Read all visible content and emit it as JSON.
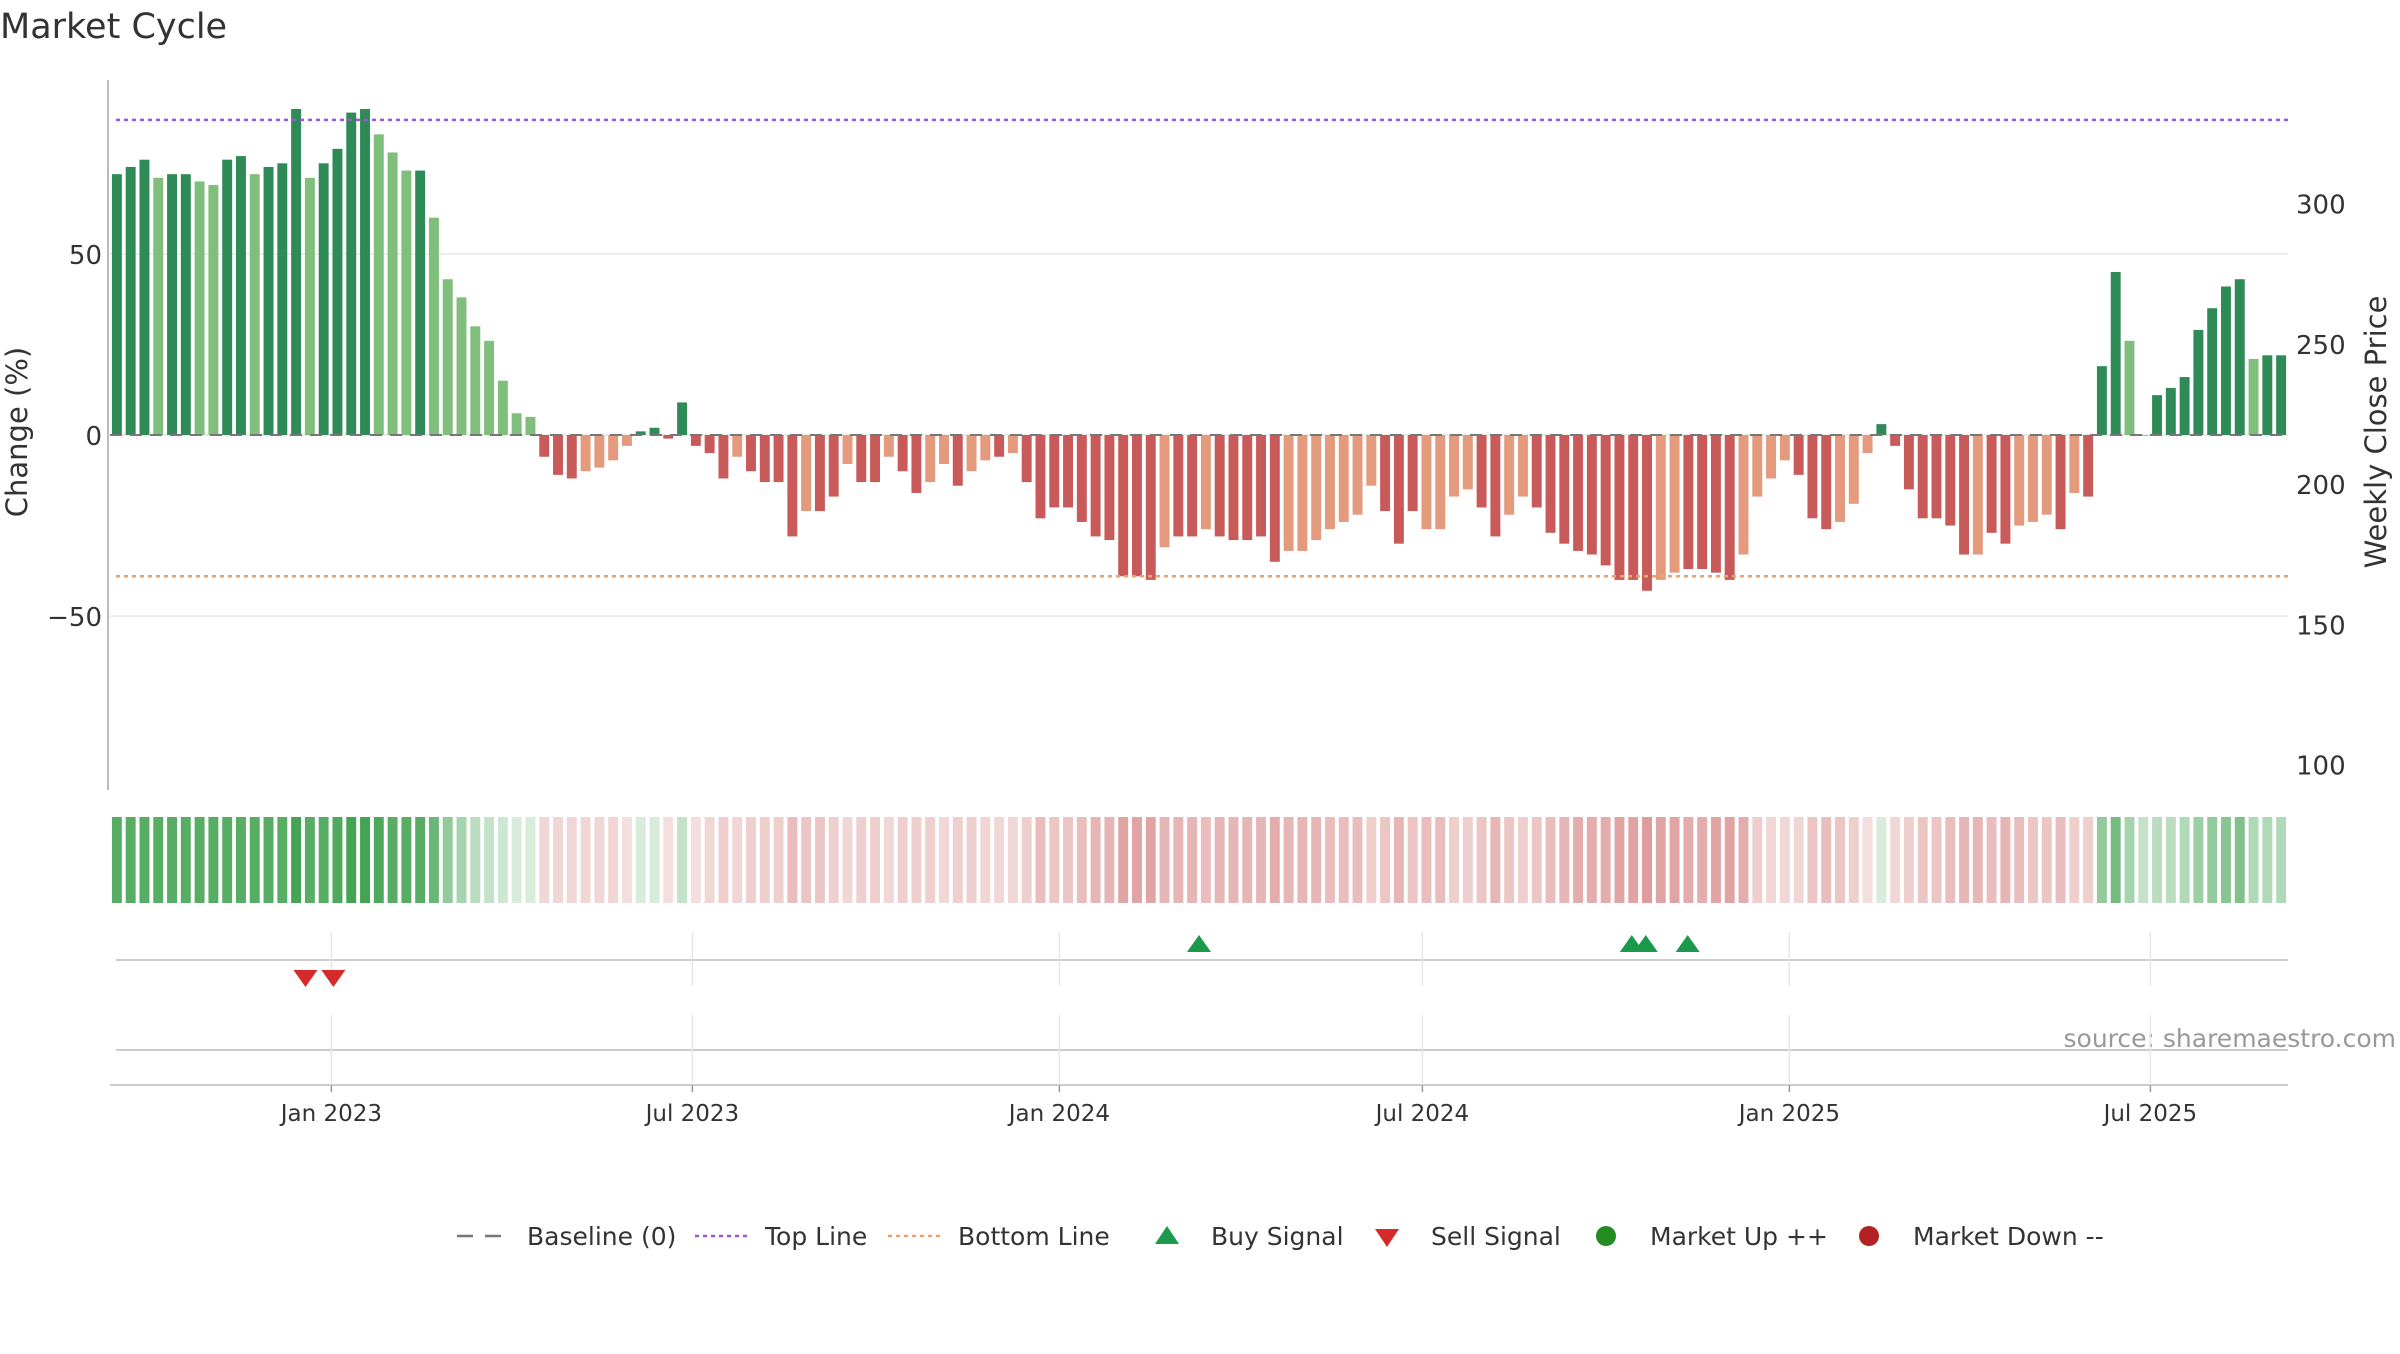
{
  "title": "Market Cycle",
  "source": "source: sharemaestro.com",
  "colors": {
    "strong_up": "#2e8b57",
    "light_up": "#7fbf7b",
    "strong_down": "#c85a5a",
    "light_down": "#e39a7d",
    "top_line": "#9b59d0",
    "bottom_line": "#e8a46a",
    "baseline": "#777777",
    "buy": "#1a9a4a",
    "sell": "#d62a2a",
    "market_up": "#228b22",
    "market_down": "#b22222",
    "grid": "#e6e6e6",
    "axis_text": "#333333",
    "source_text": "#999999"
  },
  "chart_data": {
    "type": "bar",
    "title": "Market Cycle",
    "ylabel": "Change (%)",
    "y2label": "Weekly Close Price",
    "ylim": [
      -98,
      98
    ],
    "yticks": [
      -50,
      0,
      50
    ],
    "ytick_labels": [
      "−50",
      "0",
      "50"
    ],
    "y2lim": [
      91,
      344
    ],
    "y2ticks": [
      100,
      150,
      200,
      250,
      300
    ],
    "baseline": 0,
    "top_line": 87,
    "bottom_line": -39,
    "x_start": "2022-09-12",
    "x_end": "2025-09-08",
    "xticks": [
      "2023-01-01",
      "2023-07-01",
      "2024-01-01",
      "2024-07-01",
      "2025-01-01",
      "2025-07-01"
    ],
    "xtick_labels": [
      "Jan 2023",
      "Jul 2023",
      "Jan 2024",
      "Jul 2024",
      "Jan 2025",
      "Jul 2025"
    ],
    "values": [
      72,
      74,
      76,
      71,
      72,
      72,
      70,
      69,
      76,
      77,
      72,
      74,
      75,
      90,
      71,
      75,
      79,
      89,
      90,
      83,
      78,
      73,
      73,
      60,
      43,
      38,
      30,
      26,
      15,
      6,
      5,
      -6,
      -11,
      -12,
      -10,
      -9,
      -7,
      -3,
      1,
      2,
      -1,
      9,
      -3,
      -5,
      -12,
      -6,
      -10,
      -13,
      -13,
      -28,
      -21,
      -21,
      -17,
      -8,
      -13,
      -13,
      -6,
      -10,
      -16,
      -13,
      -8,
      -14,
      -10,
      -7,
      -6,
      -5,
      -13,
      -23,
      -20,
      -20,
      -24,
      -28,
      -29,
      -39,
      -39,
      -40,
      -31,
      -28,
      -28,
      -26,
      -28,
      -29,
      -29,
      -28,
      -35,
      -32,
      -32,
      -29,
      -26,
      -24,
      -22,
      -14,
      -21,
      -30,
      -21,
      -26,
      -26,
      -17,
      -15,
      -20,
      -28,
      -22,
      -17,
      -20,
      -27,
      -30,
      -32,
      -33,
      -36,
      -40,
      -40,
      -43,
      -40,
      -38,
      -37,
      -37,
      -38,
      -40,
      -33,
      -17,
      -12,
      -7,
      -11,
      -23,
      -26,
      -24,
      -19,
      -5,
      3,
      -3,
      -15,
      -23,
      -23,
      -25,
      -33,
      -33,
      -27,
      -30,
      -25,
      -24,
      -22,
      -26,
      -16,
      -17,
      19,
      45,
      26,
      0,
      11,
      13,
      16,
      29,
      35,
      41,
      43,
      21,
      22,
      22
    ],
    "strong_flags": [
      1,
      1,
      1,
      0,
      1,
      1,
      0,
      0,
      1,
      1,
      0,
      1,
      1,
      1,
      0,
      1,
      1,
      1,
      1,
      0,
      0,
      0,
      1,
      0,
      0,
      0,
      0,
      0,
      0,
      0,
      0,
      1,
      1,
      1,
      0,
      0,
      0,
      0,
      1,
      1,
      1,
      1,
      1,
      1,
      1,
      0,
      1,
      1,
      1,
      1,
      0,
      1,
      1,
      0,
      1,
      1,
      0,
      1,
      1,
      0,
      0,
      1,
      0,
      0,
      1,
      0,
      1,
      1,
      1,
      1,
      1,
      1,
      1,
      1,
      1,
      1,
      0,
      1,
      1,
      0,
      1,
      1,
      1,
      1,
      1,
      0,
      0,
      0,
      0,
      0,
      0,
      0,
      1,
      1,
      1,
      0,
      0,
      0,
      0,
      1,
      1,
      0,
      0,
      1,
      1,
      1,
      1,
      1,
      1,
      1,
      1,
      1,
      0,
      0,
      1,
      1,
      1,
      1,
      0,
      0,
      0,
      0,
      1,
      1,
      1,
      0,
      0,
      0,
      1,
      1,
      1,
      1,
      1,
      1,
      1,
      0,
      1,
      1,
      0,
      0,
      0,
      1,
      0,
      1,
      1,
      1,
      0,
      0,
      1,
      1,
      1,
      1,
      1,
      1,
      1,
      0,
      1,
      1
    ],
    "strip_levels": [
      0.85,
      0.85,
      0.85,
      0.85,
      0.85,
      0.85,
      0.85,
      0.85,
      0.85,
      0.85,
      0.85,
      0.85,
      0.85,
      0.95,
      0.85,
      0.85,
      0.9,
      0.95,
      0.95,
      0.9,
      0.85,
      0.85,
      0.85,
      0.75,
      0.55,
      0.45,
      0.35,
      0.3,
      0.25,
      0.2,
      0.2,
      0.25,
      0.25,
      0.25,
      0.25,
      0.25,
      0.25,
      0.2,
      0.2,
      0.2,
      0.2,
      0.3,
      0.2,
      0.25,
      0.3,
      0.25,
      0.3,
      0.3,
      0.3,
      0.4,
      0.35,
      0.35,
      0.3,
      0.25,
      0.3,
      0.3,
      0.25,
      0.3,
      0.3,
      0.3,
      0.25,
      0.3,
      0.3,
      0.25,
      0.25,
      0.25,
      0.3,
      0.4,
      0.35,
      0.35,
      0.4,
      0.45,
      0.45,
      0.55,
      0.55,
      0.55,
      0.45,
      0.45,
      0.45,
      0.4,
      0.45,
      0.45,
      0.45,
      0.45,
      0.5,
      0.45,
      0.45,
      0.45,
      0.4,
      0.4,
      0.4,
      0.3,
      0.35,
      0.45,
      0.35,
      0.4,
      0.4,
      0.3,
      0.3,
      0.35,
      0.45,
      0.35,
      0.3,
      0.35,
      0.4,
      0.45,
      0.5,
      0.5,
      0.5,
      0.55,
      0.55,
      0.6,
      0.55,
      0.55,
      0.5,
      0.5,
      0.55,
      0.55,
      0.5,
      0.3,
      0.25,
      0.25,
      0.25,
      0.35,
      0.4,
      0.35,
      0.3,
      0.2,
      0.2,
      0.25,
      0.3,
      0.35,
      0.35,
      0.4,
      0.45,
      0.45,
      0.4,
      0.45,
      0.4,
      0.35,
      0.35,
      0.4,
      0.3,
      0.3,
      0.55,
      0.7,
      0.45,
      0.3,
      0.35,
      0.35,
      0.4,
      0.5,
      0.55,
      0.6,
      0.65,
      0.4,
      0.4,
      0.4
    ],
    "buy_signals": [
      "2024-03-11",
      "2024-10-14",
      "2024-10-21",
      "2024-11-11"
    ],
    "sell_signals": [
      "2022-12-19",
      "2023-01-02"
    ],
    "legend": [
      {
        "key": "baseline",
        "label": "Baseline (0)",
        "symbol": "dash"
      },
      {
        "key": "top_line",
        "label": "Top Line",
        "symbol": "dot-line"
      },
      {
        "key": "bottom_line",
        "label": "Bottom Line",
        "symbol": "dot-line"
      },
      {
        "key": "buy",
        "label": "Buy Signal",
        "symbol": "triangle-up"
      },
      {
        "key": "sell",
        "label": "Sell Signal",
        "symbol": "triangle-down"
      },
      {
        "key": "market_up",
        "label": "Market Up ++",
        "symbol": "circle"
      },
      {
        "key": "market_down",
        "label": "Market Down --",
        "symbol": "circle"
      }
    ],
    "legend_position": "bottom-center",
    "grid": true
  }
}
